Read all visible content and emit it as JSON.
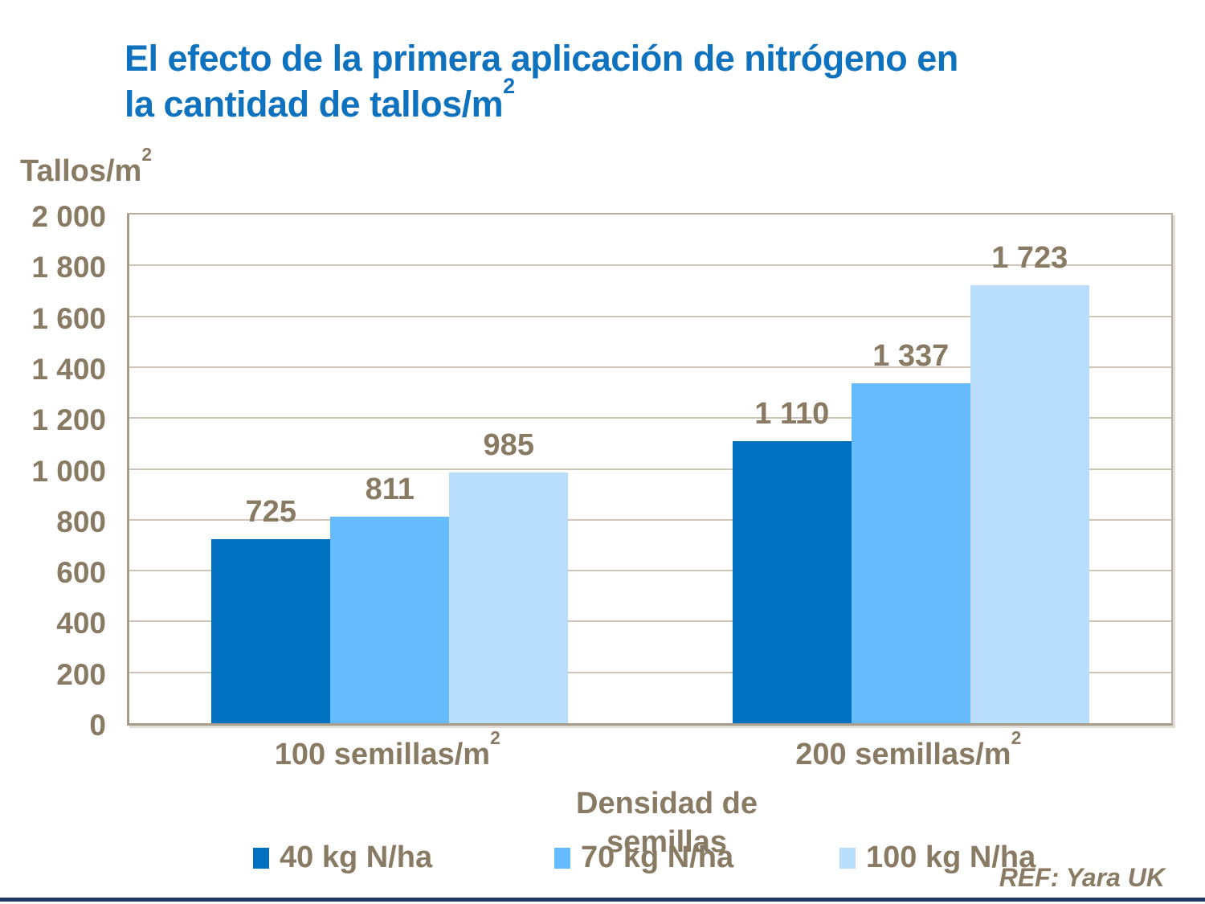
{
  "title": {
    "line1": "El efecto de la primera aplicación de nitrógeno en",
    "line2": "la cantidad de tallos/m",
    "line2_sup": "2",
    "color": "#0e72be"
  },
  "chart_data": {
    "type": "bar",
    "title": "El efecto de la primera aplicación de nitrógeno en la cantidad de tallos/m2",
    "y_axis_title": "Tallos/m",
    "y_axis_title_sup": "2",
    "x_axis_title_line1": "Densidad de",
    "x_axis_title_line2": "semillas",
    "categories": [
      {
        "prefix": "100 semillas/m",
        "sup": "2"
      },
      {
        "prefix": "200 semillas/m",
        "sup": "2"
      }
    ],
    "series": [
      {
        "name": "40 kg N/ha",
        "color": "#0070c0",
        "values": [
          725,
          1110
        ]
      },
      {
        "name": "70 kg N/ha",
        "color": "#66bbfc",
        "values": [
          811,
          1337
        ]
      },
      {
        "name": "100 kg N/ha",
        "color": "#b9ddfd",
        "values": [
          985,
          1723
        ]
      }
    ],
    "ylim": [
      0,
      2000
    ],
    "ytick_step": 200,
    "grid": true,
    "legend_position": "bottom",
    "data_labels": true
  },
  "footer": {
    "ref": "REF: Yara UK"
  },
  "colors": {
    "axis_text": "#897a64",
    "axis_line": "#a79b89",
    "gridline": "#cfc5b6",
    "bottom_bar": "#1f3864"
  }
}
